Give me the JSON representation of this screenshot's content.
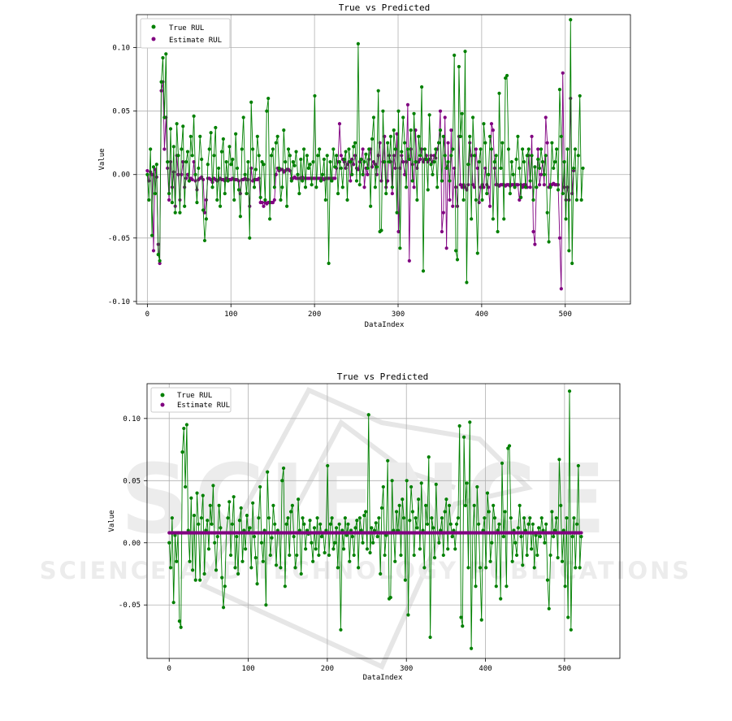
{
  "watermark": {
    "big": "SCIENCE",
    "small": "SCIENCE AND TECHNOLOGY PUBLICATIONS"
  },
  "chart_data": [
    {
      "type": "line",
      "title": "True vs Predicted",
      "xlabel": "DataIndex",
      "ylabel": "Value",
      "xlim": [
        -13,
        578
      ],
      "ylim": [
        -0.102,
        0.126
      ],
      "xticks": [
        0,
        100,
        200,
        300,
        400,
        500
      ],
      "yticks": [
        -0.1,
        -0.05,
        0.0,
        0.05,
        0.1
      ],
      "ytick_labels": [
        "-0.10",
        "-0.05",
        "0.00",
        "0.05",
        "0.10"
      ],
      "grid": true,
      "legend_position": "top-left",
      "series": [
        {
          "name": "True RUL",
          "color": "#008000",
          "marker": "circle",
          "values": [
            0.0,
            -0.02,
            0.02,
            -0.048,
            0.006,
            -0.015,
            0.008,
            -0.063,
            -0.068,
            0.073,
            0.092,
            0.045,
            0.095,
            0.01,
            -0.015,
            0.036,
            -0.022,
            0.022,
            -0.03,
            0.04,
            0.015,
            -0.03,
            0.02,
            0.038,
            -0.025,
            0.01,
            0.018,
            -0.005,
            0.03,
            0.015,
            0.046,
            0.0,
            -0.022,
            0.005,
            0.03,
            0.012,
            -0.028,
            -0.052,
            -0.035,
            0.008,
            0.02,
            0.033,
            -0.01,
            0.015,
            0.037,
            -0.02,
            0.005,
            -0.025,
            0.018,
            0.028,
            -0.015,
            0.01,
            -0.005,
            0.022,
            0.008,
            0.012,
            -0.02,
            0.032,
            0.005,
            -0.012,
            -0.033,
            0.02,
            0.045,
            0.0,
            -0.015,
            0.01,
            -0.05,
            0.057,
            0.02,
            -0.01,
            0.004,
            0.03,
            0.015,
            -0.018,
            0.01,
            0.008,
            -0.02,
            0.05,
            0.06,
            -0.035,
            0.015,
            0.02,
            -0.01,
            0.025,
            0.03,
            0.005,
            -0.02,
            -0.01,
            0.035,
            0.01,
            -0.025,
            0.02,
            0.015,
            -0.005,
            0.01,
            0.007,
            0.018,
            0.0,
            -0.015,
            0.012,
            -0.005,
            0.02,
            -0.01,
            0.015,
            0.005,
            0.008,
            -0.008,
            0.01,
            0.062,
            -0.01,
            0.015,
            0.02,
            -0.005,
            0.0,
            0.012,
            -0.02,
            0.015,
            -0.07,
            0.01,
            -0.005,
            0.02,
            0.006,
            0.015,
            -0.015,
            0.01,
            0.005,
            -0.01,
            0.012,
            0.018,
            -0.02,
            0.02,
            0.01,
            0.0,
            0.022,
            0.025,
            -0.005,
            0.103,
            -0.008,
            0.012,
            0.0,
            0.01,
            0.016,
            0.005,
            0.02,
            -0.025,
            0.028,
            0.045,
            -0.01,
            0.006,
            0.066,
            -0.045,
            -0.044,
            0.05,
            0.01,
            -0.015,
            0.025,
            0.01,
            0.03,
            -0.01,
            0.035,
            0.02,
            -0.03,
            0.05,
            -0.058,
            0.018,
            0.045,
            0.025,
            -0.01,
            0.02,
            0.012,
            0.035,
            -0.005,
            0.048,
            0.01,
            -0.02,
            0.03,
            0.015,
            0.069,
            -0.076,
            0.02,
            0.012,
            -0.012,
            0.047,
            0.008,
            0.0,
            0.01,
            0.02,
            -0.01,
            0.025,
            0.035,
            -0.005,
            0.03,
            0.015,
            0.005,
            0.01,
            -0.005,
            0.015,
            0.02,
            0.094,
            -0.06,
            -0.067,
            0.085,
            0.03,
            0.048,
            -0.02,
            0.097,
            -0.085,
            0.008,
            0.03,
            -0.035,
            0.045,
            0.015,
            -0.02,
            -0.062,
            0.01,
            0.02,
            -0.02,
            0.04,
            0.025,
            -0.015,
            0.0,
            0.03,
            0.02,
            -0.035,
            0.01,
            0.015,
            -0.045,
            0.064,
            0.005,
            0.025,
            -0.035,
            0.076,
            0.078,
            0.02,
            -0.015,
            0.01,
            0.0,
            -0.01,
            0.012,
            0.03,
            0.005,
            -0.018,
            0.02,
            0.01,
            -0.01,
            0.015,
            0.02,
            -0.005,
            0.015,
            -0.02,
            0.006,
            -0.01,
            0.012,
            0.005,
            0.02,
            0.01,
            0.0,
            0.015,
            -0.03,
            -0.053,
            -0.01,
            0.025,
            0.005,
            0.01,
            0.02,
            -0.012,
            0.067,
            0.03,
            -0.015,
            0.01,
            -0.035,
            0.02,
            -0.06,
            0.122,
            -0.07,
            0.005,
            0.02,
            -0.02,
            0.015,
            0.062,
            -0.02,
            0.005
          ]
        },
        {
          "name": "Estimate RUL",
          "color": "#800080",
          "marker": "circle",
          "values": [
            0.003,
            -0.005,
            0.002,
            0.0,
            -0.06,
            0.004,
            -0.002,
            -0.055,
            -0.07,
            0.066,
            0.073,
            0.02,
            0.045,
            0.005,
            -0.02,
            0.01,
            -0.01,
            0.002,
            -0.025,
            0.015,
            0.0,
            -0.02,
            0.0,
            0.01,
            -0.01,
            -0.003,
            0.0,
            -0.005,
            -0.003,
            -0.004,
            0.01,
            -0.005,
            -0.012,
            -0.004,
            -0.003,
            -0.002,
            -0.004,
            -0.03,
            -0.02,
            -0.003,
            -0.003,
            -0.004,
            -0.006,
            -0.003,
            -0.004,
            -0.005,
            -0.004,
            -0.003,
            -0.004,
            -0.004,
            -0.005,
            -0.003,
            -0.004,
            -0.004,
            -0.004,
            -0.003,
            -0.004,
            -0.004,
            -0.004,
            -0.005,
            -0.015,
            -0.004,
            -0.004,
            -0.003,
            -0.004,
            -0.004,
            -0.025,
            0.005,
            -0.005,
            -0.004,
            -0.004,
            -0.004,
            -0.003,
            -0.022,
            -0.022,
            -0.025,
            -0.022,
            -0.023,
            -0.022,
            -0.022,
            -0.022,
            -0.022,
            -0.02,
            0.0,
            0.005,
            0.003,
            0.004,
            0.004,
            0.002,
            0.003,
            0.004,
            0.004,
            0.003,
            -0.003,
            -0.003,
            -0.002,
            -0.003,
            -0.003,
            -0.003,
            -0.003,
            -0.002,
            -0.003,
            -0.003,
            -0.003,
            -0.003,
            -0.003,
            -0.003,
            -0.003,
            -0.003,
            -0.003,
            -0.003,
            -0.003,
            -0.003,
            -0.003,
            -0.004,
            -0.003,
            -0.003,
            -0.003,
            -0.003,
            -0.003,
            -0.003,
            -0.003,
            0.005,
            0.01,
            0.04,
            0.015,
            0.012,
            0.01,
            0.005,
            0.008,
            0.01,
            -0.005,
            0.012,
            0.008,
            0.015,
            0.005,
            0.004,
            0.01,
            0.012,
            0.02,
            -0.01,
            0.005,
            0.0,
            0.012,
            0.02,
            0.006,
            0.01,
            0.008,
            0.0,
            0.015,
            0.025,
            -0.005,
            0.01,
            0.03,
            -0.01,
            -0.005,
            0.015,
            0.01,
            -0.015,
            0.015,
            0.005,
            0.032,
            -0.045,
            0.005,
            0.015,
            0.01,
            0.0,
            0.01,
            0.055,
            -0.068,
            0.02,
            0.008,
            -0.01,
            0.035,
            0.005,
            0.01,
            0.012,
            0.02,
            0.01,
            0.012,
            0.015,
            0.01,
            0.012,
            0.015,
            0.01,
            0.015,
            0.013,
            0.02,
            0.025,
            0.05,
            -0.045,
            -0.03,
            0.045,
            -0.058,
            0.025,
            -0.02,
            0.035,
            -0.025,
            0.005,
            -0.01,
            -0.025,
            0.03,
            -0.008,
            -0.01,
            -0.008,
            -0.01,
            -0.012,
            -0.008,
            0.025,
            0.015,
            -0.008,
            -0.01,
            0.02,
            0.005,
            -0.022,
            -0.01,
            -0.008,
            -0.01,
            0.005,
            -0.008,
            -0.01,
            -0.025,
            0.04,
            0.035,
            0.005,
            -0.008,
            -0.008,
            -0.009,
            -0.008,
            -0.008,
            -0.008,
            -0.009,
            -0.008,
            -0.008,
            -0.009,
            -0.008,
            -0.008,
            -0.01,
            -0.008,
            -0.008,
            -0.02,
            -0.008,
            -0.01,
            -0.008,
            -0.008,
            -0.01,
            0.015,
            -0.01,
            0.03,
            -0.045,
            -0.055,
            -0.01,
            0.02,
            -0.008,
            0.0,
            0.01,
            -0.008,
            0.045,
            0.025,
            -0.01,
            -0.008,
            -0.008,
            -0.007,
            -0.008,
            -0.008,
            -0.008,
            -0.05,
            -0.09,
            0.08,
            -0.01,
            -0.02,
            -0.01,
            -0.02,
            0.06,
            -0.015,
            0.003
          ]
        }
      ]
    },
    {
      "type": "line",
      "title": "True vs Predicted",
      "xlabel": "DataIndex",
      "ylabel": "Value",
      "xlim": [
        -28,
        570
      ],
      "ylim": [
        -0.093,
        0.128
      ],
      "xticks": [
        0,
        100,
        200,
        300,
        400,
        500
      ],
      "yticks": [
        -0.05,
        0.0,
        0.05,
        0.1
      ],
      "ytick_labels": [
        "-0.05",
        "0.00",
        "0.05",
        "0.10"
      ],
      "grid": true,
      "legend_position": "top-left",
      "series": [
        {
          "name": "True RUL",
          "color": "#008000",
          "marker": "circle",
          "values": [
            0.0,
            -0.02,
            0.02,
            -0.048,
            0.006,
            -0.015,
            0.008,
            -0.063,
            -0.068,
            0.073,
            0.092,
            0.045,
            0.095,
            0.01,
            -0.015,
            0.036,
            -0.022,
            0.022,
            -0.03,
            0.04,
            0.015,
            -0.03,
            0.02,
            0.038,
            -0.025,
            0.01,
            0.018,
            -0.005,
            0.03,
            0.015,
            0.046,
            0.0,
            -0.022,
            0.005,
            0.03,
            0.012,
            -0.028,
            -0.052,
            -0.035,
            0.008,
            0.02,
            0.033,
            -0.01,
            0.015,
            0.037,
            -0.02,
            0.005,
            -0.025,
            0.018,
            0.028,
            -0.015,
            0.01,
            -0.005,
            0.022,
            0.008,
            0.012,
            -0.02,
            0.032,
            0.005,
            -0.012,
            -0.033,
            0.02,
            0.045,
            0.0,
            -0.015,
            0.01,
            -0.05,
            0.057,
            0.02,
            -0.01,
            0.004,
            0.03,
            0.015,
            -0.018,
            0.01,
            0.008,
            -0.02,
            0.05,
            0.06,
            -0.035,
            0.015,
            0.02,
            -0.01,
            0.025,
            0.03,
            0.005,
            -0.02,
            -0.01,
            0.035,
            0.01,
            -0.025,
            0.02,
            0.015,
            -0.005,
            0.01,
            0.007,
            0.018,
            0.0,
            -0.015,
            0.012,
            -0.005,
            0.02,
            -0.01,
            0.015,
            0.005,
            0.008,
            -0.008,
            0.01,
            0.062,
            -0.01,
            0.015,
            0.02,
            -0.005,
            0.0,
            0.012,
            -0.02,
            0.015,
            -0.07,
            0.01,
            -0.005,
            0.02,
            0.006,
            0.015,
            -0.015,
            0.01,
            0.005,
            -0.01,
            0.012,
            0.018,
            -0.02,
            0.02,
            0.01,
            0.0,
            0.022,
            0.025,
            -0.005,
            0.103,
            -0.008,
            0.012,
            0.0,
            0.01,
            0.016,
            0.005,
            0.02,
            -0.025,
            0.028,
            0.045,
            -0.01,
            0.006,
            0.066,
            -0.045,
            -0.044,
            0.05,
            0.01,
            -0.015,
            0.025,
            0.01,
            0.03,
            -0.01,
            0.035,
            0.02,
            -0.03,
            0.05,
            -0.058,
            0.018,
            0.045,
            0.025,
            -0.01,
            0.02,
            0.012,
            0.035,
            -0.005,
            0.048,
            0.01,
            -0.02,
            0.03,
            0.015,
            0.069,
            -0.076,
            0.02,
            0.012,
            -0.012,
            0.047,
            0.008,
            0.0,
            0.01,
            0.02,
            -0.01,
            0.025,
            0.035,
            -0.005,
            0.03,
            0.015,
            0.005,
            0.01,
            -0.005,
            0.015,
            0.02,
            0.094,
            -0.06,
            -0.067,
            0.085,
            0.03,
            0.048,
            -0.02,
            0.097,
            -0.085,
            0.008,
            0.03,
            -0.035,
            0.045,
            0.015,
            -0.02,
            -0.062,
            0.01,
            0.02,
            -0.02,
            0.04,
            0.025,
            -0.015,
            0.0,
            0.03,
            0.02,
            -0.035,
            0.01,
            0.015,
            -0.045,
            0.064,
            0.005,
            0.025,
            -0.035,
            0.076,
            0.078,
            0.02,
            -0.015,
            0.01,
            0.0,
            -0.01,
            0.012,
            0.03,
            0.005,
            -0.018,
            0.02,
            0.01,
            -0.01,
            0.015,
            0.02,
            -0.005,
            0.015,
            -0.02,
            0.006,
            -0.01,
            0.012,
            0.005,
            0.02,
            0.01,
            0.0,
            0.015,
            -0.03,
            -0.053,
            -0.01,
            0.025,
            0.005,
            0.01,
            0.02,
            -0.012,
            0.067,
            0.03,
            -0.015,
            0.01,
            -0.035,
            0.02,
            -0.06,
            0.122,
            -0.07,
            0.005,
            0.02,
            -0.02,
            0.015,
            0.062,
            -0.02,
            0.005
          ]
        },
        {
          "name": "Estimate RUL",
          "color": "#800080",
          "marker": "circle",
          "constant_value": 0.008
        }
      ]
    }
  ]
}
